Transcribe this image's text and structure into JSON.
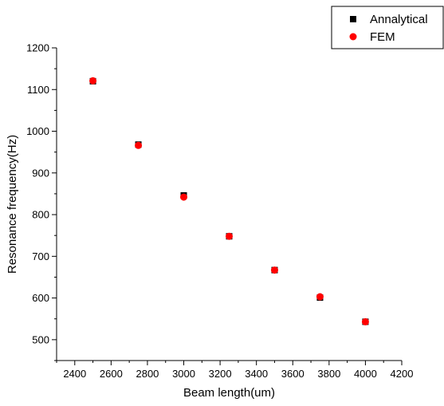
{
  "chart_data": {
    "type": "scatter",
    "title": "",
    "xlabel": "Beam length(um)",
    "ylabel": "Resonance frequency(Hz)",
    "xlim": [
      2300,
      4200
    ],
    "ylim": [
      450,
      1200
    ],
    "xticks": [
      2400,
      2600,
      2800,
      3000,
      3200,
      3400,
      3600,
      3800,
      4000,
      4200
    ],
    "yticks": [
      500,
      600,
      700,
      800,
      900,
      1000,
      1100,
      1200
    ],
    "grid": false,
    "legend_position": "top-right",
    "series": [
      {
        "name": "Annalytical",
        "marker": "square",
        "color": "#000000",
        "x": [
          2500,
          2750,
          3000,
          3250,
          3500,
          3750,
          4000
        ],
        "y": [
          1120,
          968,
          846,
          748,
          667,
          601,
          543
        ]
      },
      {
        "name": "FEM",
        "marker": "circle",
        "color": "#ff0000",
        "x": [
          2500,
          2750,
          3000,
          3250,
          3500,
          3750,
          4000
        ],
        "y": [
          1121,
          966,
          842,
          748,
          667,
          603,
          543
        ]
      }
    ]
  }
}
